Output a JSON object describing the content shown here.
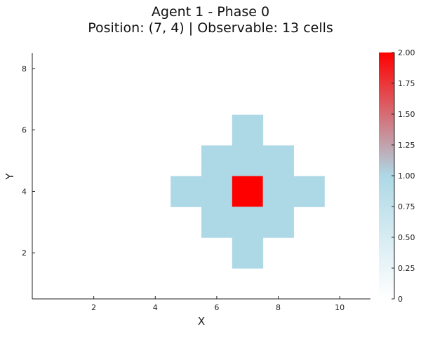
{
  "chart_data": {
    "type": "heatmap",
    "title_line1": "Agent 1 - Phase 0",
    "title_line2": "Position: (7, 4) | Observable: 13 cells",
    "xlabel": "X",
    "ylabel": "Y",
    "xlim": [
      0,
      11
    ],
    "ylim": [
      0.5,
      8.5
    ],
    "xticks": [
      2,
      4,
      6,
      8,
      10
    ],
    "yticks": [
      2,
      4,
      6,
      8
    ],
    "grid": false,
    "cells": [
      {
        "x": 7,
        "y": 6,
        "value": 1
      },
      {
        "x": 6,
        "y": 5,
        "value": 1
      },
      {
        "x": 7,
        "y": 5,
        "value": 1
      },
      {
        "x": 8,
        "y": 5,
        "value": 1
      },
      {
        "x": 5,
        "y": 4,
        "value": 1
      },
      {
        "x": 6,
        "y": 4,
        "value": 1
      },
      {
        "x": 7,
        "y": 4,
        "value": 2
      },
      {
        "x": 8,
        "y": 4,
        "value": 1
      },
      {
        "x": 9,
        "y": 4,
        "value": 1
      },
      {
        "x": 6,
        "y": 3,
        "value": 1
      },
      {
        "x": 7,
        "y": 3,
        "value": 1
      },
      {
        "x": 8,
        "y": 3,
        "value": 1
      },
      {
        "x": 7,
        "y": 2,
        "value": 1
      }
    ],
    "colorbar": {
      "min": 0,
      "max": 2,
      "ticks": [
        "0",
        "0.25",
        "0.50",
        "0.75",
        "1.00",
        "1.25",
        "1.50",
        "1.75",
        "2.00"
      ],
      "colors": {
        "low": "#ffffff",
        "mid": "#add8e6",
        "high": "#ff0000"
      }
    }
  }
}
